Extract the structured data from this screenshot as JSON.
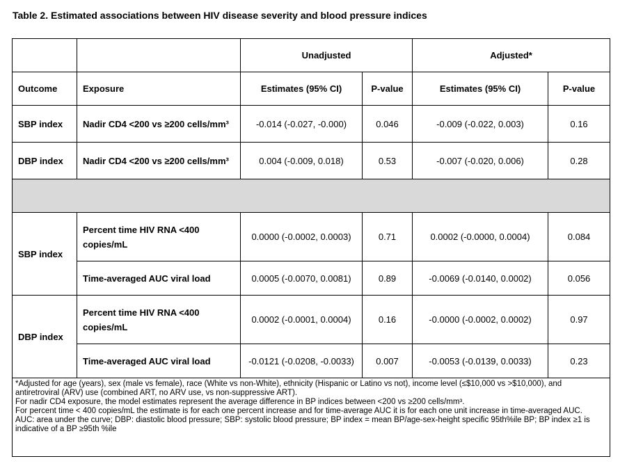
{
  "title": "Table 2. Estimated associations between HIV disease severity and blood pressure indices",
  "header": {
    "unadjusted": "Unadjusted",
    "adjusted": "Adjusted*",
    "outcome": "Outcome",
    "exposure": "Exposure",
    "estimates_unadj": "Estimates (95% CI)",
    "pvalue_unadj": "P-value",
    "estimates_adj": "Estimates (95% CI)",
    "pvalue_adj": "P-value"
  },
  "rows": [
    {
      "outcome": "SBP index",
      "exposure": "Nadir CD4 <200 vs ≥200 cells/mm³",
      "est_u": "-0.014 (-0.027, -0.000)",
      "p_u": "0.046",
      "est_a": "-0.009 (-0.022, 0.003)",
      "p_a": "0.16"
    },
    {
      "outcome": "DBP index",
      "exposure": "Nadir CD4 <200 vs ≥200 cells/mm³",
      "est_u": "0.004 (-0.009, 0.018)",
      "p_u": "0.53",
      "est_a": "-0.007 (-0.020, 0.006)",
      "p_a": "0.28"
    },
    {
      "outcome": "SBP index",
      "exposure": "Percent time HIV RNA <400 copies/mL",
      "est_u": "0.0000 (-0.0002, 0.0003)",
      "p_u": "0.71",
      "est_a": "0.0002 (-0.0000, 0.0004)",
      "p_a": "0.084"
    },
    {
      "outcome": "",
      "exposure": "Time-averaged AUC viral load",
      "est_u": "0.0005 (-0.0070, 0.0081)",
      "p_u": "0.89",
      "est_a": "-0.0069 (-0.0140, 0.0002)",
      "p_a": "0.056"
    },
    {
      "outcome": "DBP index",
      "exposure": "Percent time HIV RNA <400 copies/mL",
      "est_u": "0.0002 (-0.0001, 0.0004)",
      "p_u": "0.16",
      "est_a": "-0.0000 (-0.0002, 0.0002)",
      "p_a": "0.97"
    },
    {
      "outcome": "",
      "exposure": "Time-averaged AUC viral load",
      "est_u": "-0.0121 (-0.0208, -0.0033)",
      "p_u": "0.007",
      "est_a": "-0.0053 (-0.0139, 0.0033)",
      "p_a": "0.23"
    }
  ],
  "notes": {
    "n1": "*Adjusted for age (years), sex (male vs female), race (White vs non-White), ethnicity (Hispanic or Latino vs not), income level (≤$10,000 vs >$10,000), and antiretroviral (ARV) use (combined ART, no ARV use, vs non-suppressive ART).",
    "n2": "For nadir CD4 exposure, the model estimates represent the average difference in BP indices between <200 vs ≥200 cells/mm³.",
    "n3": "For percent time < 400 copies/mL the estimate is for each one percent increase and for time-average AUC it is for each one unit increase in time-averaged AUC.",
    "n4": "AUC: area under the curve; DBP: diastolic blood pressure; SBP: systolic blood pressure; BP index = mean BP/age-sex-height specific 95th%ile BP; BP index ≥1 is indicative of a BP ≥95th %ile"
  }
}
